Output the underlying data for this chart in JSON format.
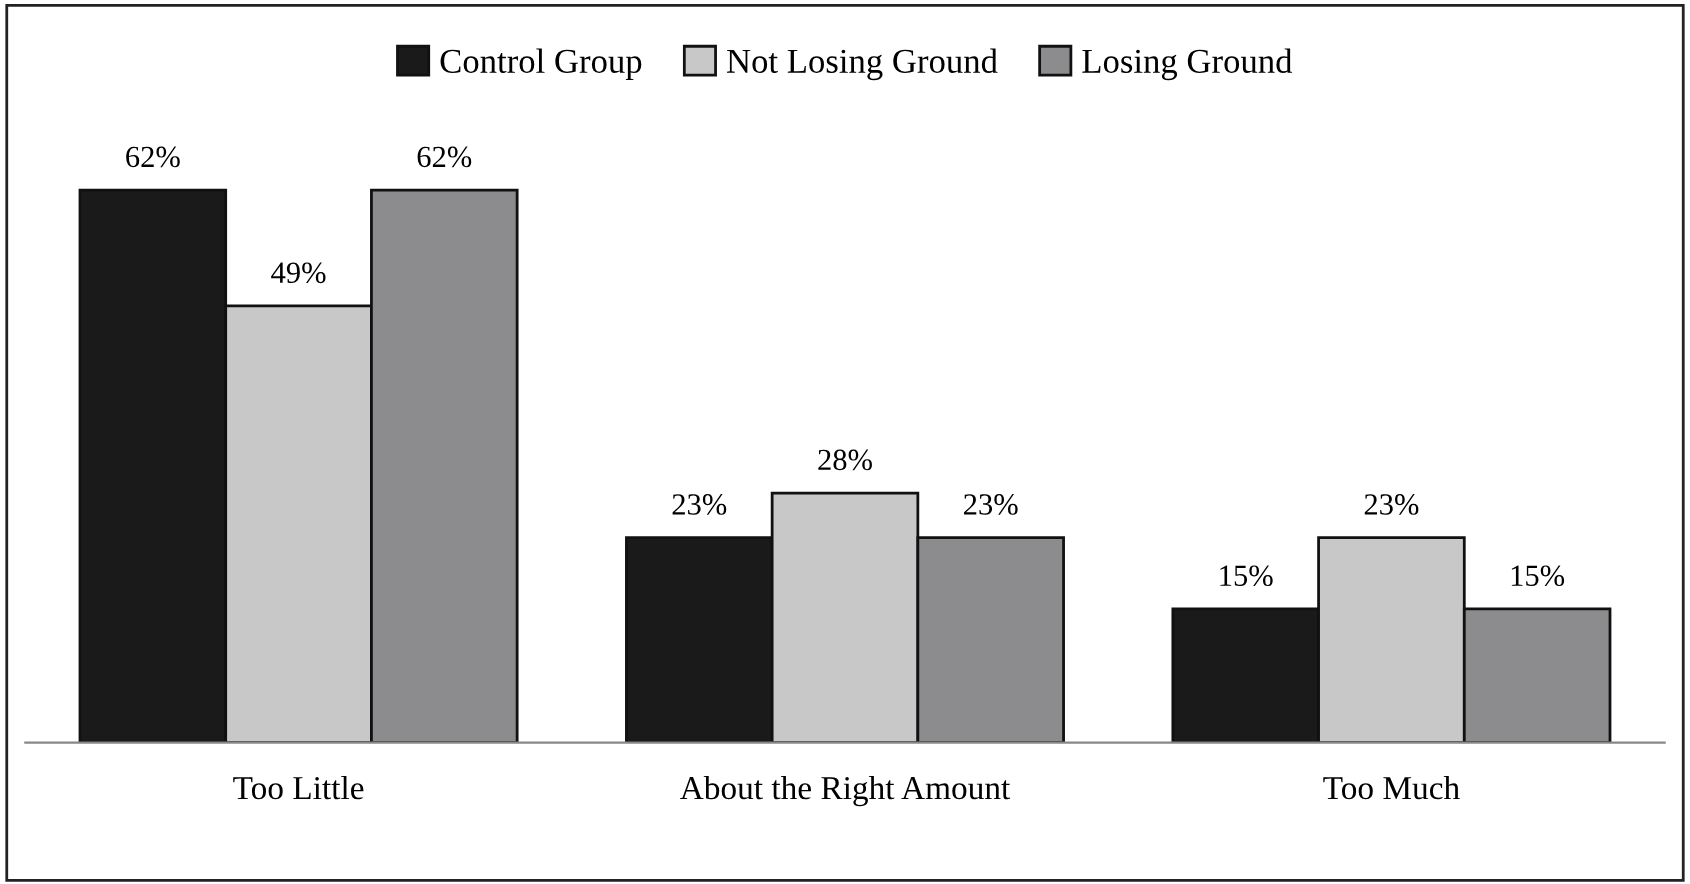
{
  "chart_data": {
    "type": "bar",
    "categories": [
      "Too Little",
      "About the Right Amount",
      "Too Much"
    ],
    "series": [
      {
        "name": "Control Group",
        "color": "#1a1a1a",
        "values": [
          62,
          23,
          15
        ],
        "value_labels": [
          "62%",
          "23%",
          "15%"
        ]
      },
      {
        "name": "Not Losing Ground",
        "color": "#c8c8c8",
        "values": [
          49,
          28,
          23
        ],
        "value_labels": [
          "49%",
          "28%",
          "23%"
        ]
      },
      {
        "name": "Losing Ground",
        "color": "#8c8c8e",
        "values": [
          62,
          23,
          15
        ],
        "value_labels": [
          "62%",
          "23%",
          "15%"
        ]
      }
    ],
    "legend": "top",
    "grid": false
  }
}
